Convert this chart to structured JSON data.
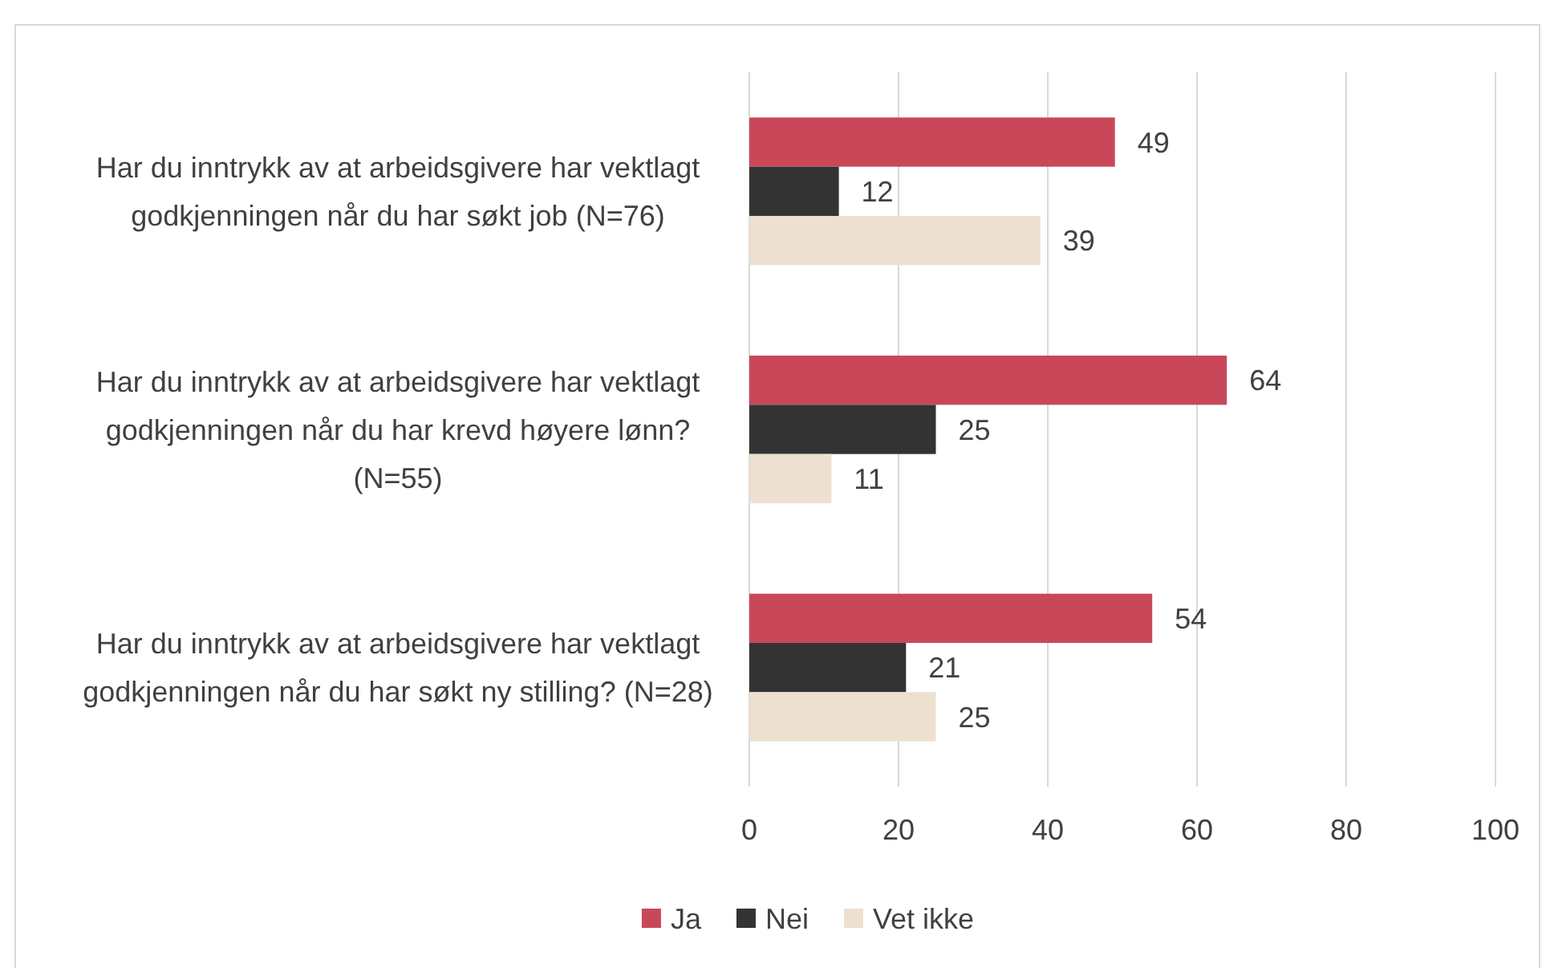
{
  "chart_data": {
    "type": "bar",
    "orientation": "horizontal",
    "categories": [
      "Har du inntrykk av at arbeidsgivere har vektlagt godkjenningen når du har søkt job (N=76)",
      "Har du inntrykk av at arbeidsgivere har vektlagt godkjenningen når du har krevd høyere lønn? (N=55)",
      "Har du inntrykk av at arbeidsgivere har vektlagt godkjenningen når du har søkt ny stilling?  (N=28)"
    ],
    "series": [
      {
        "name": "Ja",
        "color": "#c8485a",
        "values": [
          49,
          64,
          54
        ]
      },
      {
        "name": "Nei",
        "color": "#333333",
        "values": [
          12,
          25,
          21
        ]
      },
      {
        "name": "Vet ikke",
        "color": "#ede0d0",
        "values": [
          39,
          11,
          25
        ]
      }
    ],
    "xlim": [
      0,
      100
    ],
    "xticks": [
      0,
      20,
      40,
      60,
      80,
      100
    ],
    "grid": "x",
    "legend": "bottom",
    "data_labels": true
  }
}
